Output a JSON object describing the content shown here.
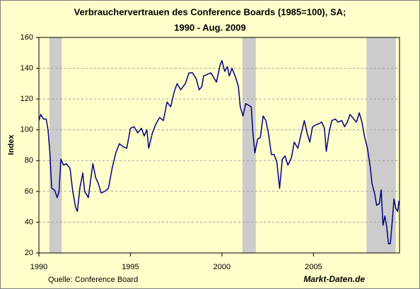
{
  "chart_data": {
    "type": "line",
    "title": "Verbrauchervertrauen des Conference Boards (1985=100), SA;",
    "subtitle": "1990 -  Aug. 2009",
    "y_label": "Index",
    "source": "Quelle: Conference Board",
    "brand": "Markt-Daten.de",
    "xlim": [
      1990,
      2009.7
    ],
    "xticks": [
      1990,
      1995,
      2000,
      2005
    ],
    "ylim": [
      20,
      160
    ],
    "yticks": [
      20,
      40,
      60,
      80,
      100,
      120,
      140,
      160
    ],
    "grid": true,
    "recessions": [
      [
        1990.58,
        1991.25
      ],
      [
        2001.12,
        2001.85
      ],
      [
        2007.9,
        2009.5
      ]
    ],
    "recession_color": "#cccccc",
    "series": [
      {
        "name": "Verbrauchervertrauen",
        "color": "#000080",
        "x": [
          1990.0,
          1990.1,
          1990.25,
          1990.4,
          1990.5,
          1990.6,
          1990.7,
          1990.85,
          1991.0,
          1991.1,
          1991.2,
          1991.35,
          1991.5,
          1991.7,
          1991.85,
          1992.0,
          1992.1,
          1992.25,
          1992.4,
          1992.5,
          1992.7,
          1992.8,
          1992.95,
          1993.1,
          1993.25,
          1993.4,
          1993.6,
          1993.8,
          1994.0,
          1994.2,
          1994.4,
          1994.6,
          1994.8,
          1995.0,
          1995.2,
          1995.4,
          1995.6,
          1995.75,
          1995.9,
          1996.0,
          1996.2,
          1996.4,
          1996.6,
          1996.8,
          1997.0,
          1997.2,
          1997.4,
          1997.55,
          1997.75,
          1998.0,
          1998.2,
          1998.4,
          1998.6,
          1998.75,
          1998.9,
          1999.0,
          1999.2,
          1999.4,
          1999.5,
          1999.7,
          1999.9,
          2000.0,
          2000.15,
          2000.3,
          2000.4,
          2000.55,
          2000.75,
          2000.9,
          2001.0,
          2001.15,
          2001.3,
          2001.45,
          2001.6,
          2001.7,
          2001.8,
          2001.95,
          2002.1,
          2002.25,
          2002.4,
          2002.55,
          2002.7,
          2002.85,
          2003.0,
          2003.15,
          2003.3,
          2003.45,
          2003.6,
          2003.8,
          2003.95,
          2004.15,
          2004.3,
          2004.5,
          2004.65,
          2004.8,
          2004.95,
          2005.1,
          2005.3,
          2005.45,
          2005.6,
          2005.7,
          2005.85,
          2006.0,
          2006.2,
          2006.35,
          2006.55,
          2006.7,
          2006.85,
          2007.0,
          2007.2,
          2007.35,
          2007.5,
          2007.65,
          2007.8,
          2007.95,
          2008.1,
          2008.2,
          2008.35,
          2008.45,
          2008.6,
          2008.7,
          2008.8,
          2008.9,
          2009.0,
          2009.1,
          2009.2,
          2009.3,
          2009.4,
          2009.5,
          2009.6,
          2009.67
        ],
        "values": [
          106,
          110,
          107,
          107,
          100,
          85,
          62,
          61,
          56,
          60,
          81,
          77,
          78,
          75,
          60,
          50,
          47,
          63,
          72,
          60,
          56,
          65,
          78,
          69,
          65,
          59,
          60,
          62,
          75,
          85,
          91,
          89,
          88,
          101,
          102,
          98,
          101,
          96,
          100,
          88,
          98,
          104,
          108,
          106,
          118,
          115,
          125,
          130,
          126,
          130,
          137,
          137,
          133,
          126,
          128,
          135,
          136,
          137,
          135,
          131,
          142,
          145,
          138,
          141,
          135,
          140,
          134,
          128,
          115,
          109,
          117,
          116,
          115,
          97,
          85,
          94,
          95,
          109,
          106,
          97,
          84,
          84,
          79,
          62,
          81,
          83,
          77,
          82,
          92,
          88,
          96,
          106,
          98,
          92,
          102,
          103,
          104,
          105,
          101,
          86,
          98,
          106,
          107,
          105,
          106,
          102,
          105,
          110,
          107,
          105,
          111,
          105,
          95,
          88,
          76,
          65,
          58,
          51,
          52,
          61,
          38,
          44,
          37,
          26,
          26,
          40,
          55,
          49,
          47,
          54
        ]
      }
    ]
  }
}
